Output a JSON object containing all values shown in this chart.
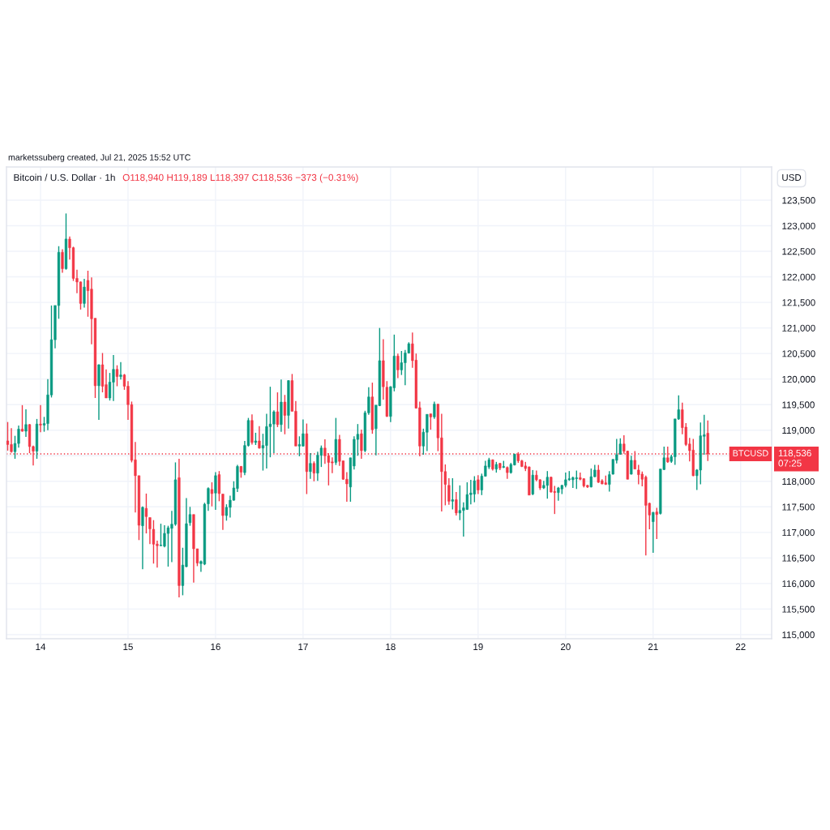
{
  "chart_data": {
    "type": "candlestick",
    "title": "Bitcoin / U.S. Dollar · 1h",
    "subtitle": "O118,940 H119,189 L118,397 C118,536 −373 (−0.31%)",
    "ylabel": "USD",
    "annotations": [
      "marketssuberg created, Jul 21, 2025 15:52 UTC",
      "118,536",
      "07:25"
    ],
    "x": [
      "2025-07-13T15:00",
      "2025-07-13T16:00",
      "2025-07-13T17:00",
      "2025-07-13T18:00",
      "2025-07-13T19:00",
      "2025-07-13T20:00",
      "2025-07-13T21:00",
      "2025-07-13T22:00",
      "2025-07-13T23:00",
      "2025-07-14T00:00",
      "2025-07-14T01:00",
      "2025-07-14T02:00",
      "2025-07-14T03:00",
      "2025-07-14T04:00",
      "2025-07-14T05:00",
      "2025-07-14T06:00",
      "2025-07-14T07:00",
      "2025-07-14T08:00",
      "2025-07-14T09:00",
      "2025-07-14T10:00",
      "2025-07-14T11:00",
      "2025-07-14T12:00",
      "2025-07-14T13:00",
      "2025-07-14T14:00",
      "2025-07-14T15:00",
      "2025-07-14T16:00",
      "2025-07-14T17:00",
      "2025-07-14T18:00",
      "2025-07-14T19:00",
      "2025-07-14T20:00",
      "2025-07-14T21:00",
      "2025-07-14T22:00",
      "2025-07-14T23:00",
      "2025-07-15T00:00",
      "2025-07-15T01:00",
      "2025-07-15T02:00",
      "2025-07-15T03:00",
      "2025-07-15T04:00",
      "2025-07-15T05:00",
      "2025-07-15T06:00",
      "2025-07-15T07:00",
      "2025-07-15T08:00",
      "2025-07-15T09:00",
      "2025-07-15T10:00",
      "2025-07-15T11:00",
      "2025-07-15T12:00",
      "2025-07-15T13:00",
      "2025-07-15T14:00",
      "2025-07-15T15:00",
      "2025-07-15T16:00",
      "2025-07-15T17:00",
      "2025-07-15T18:00",
      "2025-07-15T19:00",
      "2025-07-15T20:00",
      "2025-07-15T21:00",
      "2025-07-15T22:00",
      "2025-07-15T23:00",
      "2025-07-16T00:00",
      "2025-07-16T01:00",
      "2025-07-16T02:00",
      "2025-07-16T03:00",
      "2025-07-16T04:00",
      "2025-07-16T05:00",
      "2025-07-16T06:00",
      "2025-07-16T07:00",
      "2025-07-16T08:00",
      "2025-07-16T09:00",
      "2025-07-16T10:00",
      "2025-07-16T11:00",
      "2025-07-16T12:00",
      "2025-07-16T13:00",
      "2025-07-16T14:00",
      "2025-07-16T15:00",
      "2025-07-16T16:00",
      "2025-07-16T17:00",
      "2025-07-16T18:00",
      "2025-07-16T19:00",
      "2025-07-16T20:00",
      "2025-07-16T21:00",
      "2025-07-16T22:00",
      "2025-07-16T23:00",
      "2025-07-17T00:00",
      "2025-07-17T01:00",
      "2025-07-17T02:00",
      "2025-07-17T03:00",
      "2025-07-17T04:00",
      "2025-07-17T05:00",
      "2025-07-17T06:00",
      "2025-07-17T07:00",
      "2025-07-17T08:00",
      "2025-07-17T09:00",
      "2025-07-17T10:00",
      "2025-07-17T11:00",
      "2025-07-17T12:00",
      "2025-07-17T13:00",
      "2025-07-17T14:00",
      "2025-07-17T15:00",
      "2025-07-17T16:00",
      "2025-07-17T17:00",
      "2025-07-17T18:00",
      "2025-07-17T19:00",
      "2025-07-17T20:00",
      "2025-07-17T21:00",
      "2025-07-17T22:00",
      "2025-07-17T23:00",
      "2025-07-18T00:00",
      "2025-07-18T01:00",
      "2025-07-18T02:00",
      "2025-07-18T03:00",
      "2025-07-18T04:00",
      "2025-07-18T05:00",
      "2025-07-18T06:00",
      "2025-07-18T07:00",
      "2025-07-18T08:00",
      "2025-07-18T09:00",
      "2025-07-18T10:00",
      "2025-07-18T11:00",
      "2025-07-18T12:00",
      "2025-07-18T13:00",
      "2025-07-18T14:00",
      "2025-07-18T15:00",
      "2025-07-18T16:00",
      "2025-07-18T17:00",
      "2025-07-18T18:00",
      "2025-07-18T19:00",
      "2025-07-18T20:00",
      "2025-07-18T21:00",
      "2025-07-18T22:00",
      "2025-07-18T23:00",
      "2025-07-19T00:00",
      "2025-07-19T01:00",
      "2025-07-19T02:00",
      "2025-07-19T03:00",
      "2025-07-19T04:00",
      "2025-07-19T05:00",
      "2025-07-19T06:00",
      "2025-07-19T07:00",
      "2025-07-19T08:00",
      "2025-07-19T09:00",
      "2025-07-19T10:00",
      "2025-07-19T11:00",
      "2025-07-19T12:00",
      "2025-07-19T13:00",
      "2025-07-19T14:00",
      "2025-07-19T15:00",
      "2025-07-19T16:00",
      "2025-07-19T17:00",
      "2025-07-19T18:00",
      "2025-07-19T19:00",
      "2025-07-19T20:00",
      "2025-07-19T21:00",
      "2025-07-19T22:00",
      "2025-07-19T23:00",
      "2025-07-20T00:00",
      "2025-07-20T01:00",
      "2025-07-20T02:00",
      "2025-07-20T03:00",
      "2025-07-20T04:00",
      "2025-07-20T05:00",
      "2025-07-20T06:00",
      "2025-07-20T07:00",
      "2025-07-20T08:00",
      "2025-07-20T09:00",
      "2025-07-20T10:00",
      "2025-07-20T11:00",
      "2025-07-20T12:00",
      "2025-07-20T13:00",
      "2025-07-20T14:00",
      "2025-07-20T15:00",
      "2025-07-20T16:00",
      "2025-07-20T17:00",
      "2025-07-20T18:00",
      "2025-07-20T19:00",
      "2025-07-20T20:00",
      "2025-07-20T21:00",
      "2025-07-20T22:00",
      "2025-07-20T23:00",
      "2025-07-21T00:00",
      "2025-07-21T01:00",
      "2025-07-21T02:00",
      "2025-07-21T03:00",
      "2025-07-21T04:00",
      "2025-07-21T05:00",
      "2025-07-21T06:00",
      "2025-07-21T07:00",
      "2025-07-21T08:00",
      "2025-07-21T09:00",
      "2025-07-21T10:00",
      "2025-07-21T11:00",
      "2025-07-21T12:00",
      "2025-07-21T13:00",
      "2025-07-21T14:00",
      "2025-07-21T15:00"
    ],
    "ohlc": [
      [
        118790,
        119160,
        118600,
        118720
      ],
      [
        118720,
        119040,
        118560,
        118580
      ],
      [
        118580,
        118890,
        118440,
        118740
      ],
      [
        118740,
        119090,
        118660,
        119020
      ],
      [
        119020,
        119490,
        118970,
        118980
      ],
      [
        118980,
        119410,
        118870,
        119110
      ],
      [
        119110,
        119120,
        118550,
        118680
      ],
      [
        118680,
        118700,
        118310,
        118590
      ],
      [
        118590,
        119220,
        118440,
        119120
      ],
      [
        119120,
        119490,
        118960,
        119100
      ],
      [
        119100,
        119260,
        118970,
        119130
      ],
      [
        119130,
        120000,
        119000,
        119690
      ],
      [
        119690,
        121440,
        119640,
        120770
      ],
      [
        120770,
        121440,
        120600,
        121440
      ],
      [
        121440,
        122600,
        121180,
        122480
      ],
      [
        122480,
        122540,
        122080,
        122160
      ],
      [
        122160,
        123240,
        122140,
        122740
      ],
      [
        122740,
        122790,
        122340,
        122570
      ],
      [
        122570,
        122590,
        121920,
        121970
      ],
      [
        121970,
        122140,
        121680,
        121900
      ],
      [
        121900,
        121910,
        121360,
        121480
      ],
      [
        121480,
        121960,
        121400,
        121800
      ],
      [
        121930,
        122120,
        121220,
        121730
      ],
      [
        121760,
        121990,
        120680,
        121180
      ],
      [
        121190,
        121190,
        119630,
        119870
      ],
      [
        119870,
        120290,
        119200,
        120280
      ],
      [
        120280,
        120510,
        119740,
        119860
      ],
      [
        119890,
        120190,
        119630,
        119630
      ],
      [
        119630,
        120120,
        119580,
        119940
      ],
      [
        119940,
        120470,
        119570,
        120190
      ],
      [
        120190,
        120270,
        119860,
        120050
      ],
      [
        120050,
        120330,
        119990,
        120080
      ],
      [
        120080,
        120100,
        119790,
        119860
      ],
      [
        119860,
        119960,
        119200,
        119500
      ],
      [
        119500,
        119560,
        118370,
        118410
      ],
      [
        118420,
        118770,
        117390,
        118110
      ],
      [
        118110,
        118110,
        116850,
        117140
      ],
      [
        117130,
        117510,
        116280,
        117490
      ],
      [
        117470,
        117760,
        116980,
        117310
      ],
      [
        117290,
        117290,
        116770,
        117070
      ],
      [
        117060,
        117240,
        116390,
        116770
      ],
      [
        116770,
        116840,
        116310,
        116740
      ],
      [
        116740,
        117170,
        116730,
        116750
      ],
      [
        116730,
        117140,
        116710,
        116980
      ],
      [
        116980,
        117130,
        116330,
        117090
      ],
      [
        117080,
        117420,
        116420,
        117160
      ],
      [
        117160,
        118370,
        117130,
        118030
      ],
      [
        118070,
        118440,
        115730,
        115960
      ],
      [
        115960,
        116700,
        115770,
        116360
      ],
      [
        116330,
        117670,
        116320,
        117170
      ],
      [
        117190,
        117500,
        117130,
        117350
      ],
      [
        117350,
        117350,
        116020,
        116680
      ],
      [
        116680,
        116680,
        116340,
        116400
      ],
      [
        116390,
        116450,
        116230,
        116430
      ],
      [
        116380,
        117580,
        116360,
        117550
      ],
      [
        117560,
        117880,
        117420,
        117860
      ],
      [
        117840,
        117980,
        117510,
        117760
      ],
      [
        117770,
        118180,
        117440,
        118110
      ],
      [
        118130,
        118200,
        117610,
        117760
      ],
      [
        117750,
        117750,
        117050,
        117330
      ],
      [
        117330,
        117550,
        117230,
        117490
      ],
      [
        117490,
        117720,
        117290,
        117630
      ],
      [
        117630,
        118000,
        117620,
        117870
      ],
      [
        117860,
        118320,
        117790,
        118290
      ],
      [
        118290,
        118300,
        118070,
        118180
      ],
      [
        118170,
        118790,
        118120,
        118700
      ],
      [
        118700,
        119240,
        118680,
        119190
      ],
      [
        119190,
        119310,
        118720,
        118760
      ],
      [
        118760,
        118950,
        118710,
        118790
      ],
      [
        118790,
        119080,
        118640,
        118650
      ],
      [
        118650,
        118930,
        118210,
        118700
      ],
      [
        118700,
        119320,
        118250,
        119070
      ],
      [
        119070,
        119850,
        118470,
        119120
      ],
      [
        119120,
        119390,
        118550,
        119360
      ],
      [
        119360,
        119740,
        119060,
        119110
      ],
      [
        119110,
        119990,
        118970,
        119550
      ],
      [
        119550,
        119690,
        118920,
        119290
      ],
      [
        119290,
        119980,
        119030,
        119970
      ],
      [
        119970,
        120100,
        119370,
        119370
      ],
      [
        119370,
        119570,
        118690,
        118690
      ],
      [
        118690,
        118880,
        118490,
        118720
      ],
      [
        118690,
        119210,
        118680,
        118930
      ],
      [
        118930,
        119130,
        117750,
        118190
      ],
      [
        118190,
        118550,
        118050,
        118350
      ],
      [
        118350,
        118390,
        118000,
        118160
      ],
      [
        118160,
        118580,
        118010,
        118510
      ],
      [
        118510,
        118700,
        118280,
        118650
      ],
      [
        118650,
        118820,
        118340,
        118500
      ],
      [
        118500,
        118550,
        117920,
        118370
      ],
      [
        118380,
        118470,
        118160,
        118360
      ],
      [
        118370,
        119240,
        118320,
        118820
      ],
      [
        118820,
        118910,
        118300,
        118390
      ],
      [
        118400,
        118400,
        118030,
        118040
      ],
      [
        118040,
        118180,
        117600,
        117950
      ],
      [
        117890,
        118460,
        117600,
        118460
      ],
      [
        118300,
        118880,
        118230,
        118820
      ],
      [
        118820,
        119120,
        118500,
        118920
      ],
      [
        118930,
        119010,
        118440,
        118600
      ],
      [
        118600,
        119380,
        118570,
        119340
      ],
      [
        119340,
        119840,
        119300,
        119650
      ],
      [
        119650,
        119930,
        118930,
        119010
      ],
      [
        119030,
        119490,
        118510,
        119490
      ],
      [
        119480,
        121000,
        119470,
        120360
      ],
      [
        120360,
        120780,
        119600,
        119850
      ],
      [
        119840,
        119960,
        119260,
        119270
      ],
      [
        119270,
        119860,
        119160,
        119850
      ],
      [
        119830,
        120870,
        119760,
        120450
      ],
      [
        120450,
        120500,
        120020,
        120180
      ],
      [
        120180,
        120550,
        120080,
        120320
      ],
      [
        120320,
        120570,
        119880,
        120510
      ],
      [
        120510,
        120720,
        120500,
        120690
      ],
      [
        120690,
        120910,
        120220,
        120360
      ],
      [
        120370,
        120500,
        119430,
        119430
      ],
      [
        119440,
        119560,
        118490,
        118690
      ],
      [
        118690,
        119030,
        118520,
        118960
      ],
      [
        118960,
        119310,
        118590,
        119310
      ],
      [
        119320,
        119320,
        119010,
        119260
      ],
      [
        119260,
        119560,
        119220,
        119510
      ],
      [
        119510,
        119510,
        118590,
        118850
      ],
      [
        118850,
        119320,
        117410,
        118190
      ],
      [
        118190,
        118330,
        117530,
        117940
      ],
      [
        117920,
        118060,
        117540,
        117610
      ],
      [
        117610,
        118060,
        117450,
        117640
      ],
      [
        117640,
        117790,
        117330,
        117380
      ],
      [
        117380,
        117920,
        117240,
        117430
      ],
      [
        117430,
        117590,
        116920,
        117480
      ],
      [
        117450,
        117980,
        117440,
        117740
      ],
      [
        117740,
        118030,
        117550,
        117770
      ],
      [
        117750,
        118100,
        117590,
        118010
      ],
      [
        118030,
        118120,
        117750,
        117830
      ],
      [
        117830,
        118150,
        117730,
        118100
      ],
      [
        118100,
        118400,
        118090,
        118300
      ],
      [
        118280,
        118460,
        118240,
        118420
      ],
      [
        118420,
        118430,
        118210,
        118240
      ],
      [
        118240,
        118380,
        118170,
        118330
      ],
      [
        118350,
        118360,
        118220,
        118260
      ],
      [
        118270,
        118400,
        118260,
        118290
      ],
      [
        118270,
        118290,
        118050,
        118170
      ],
      [
        118170,
        118360,
        118150,
        118330
      ],
      [
        118320,
        118540,
        118310,
        118530
      ],
      [
        118530,
        118570,
        118360,
        118400
      ],
      [
        118400,
        118420,
        118280,
        118290
      ],
      [
        118300,
        118380,
        118200,
        118250
      ],
      [
        118280,
        118290,
        117730,
        117730
      ],
      [
        117750,
        118220,
        117730,
        118120
      ],
      [
        118120,
        118210,
        118000,
        118030
      ],
      [
        118030,
        118040,
        117830,
        117870
      ],
      [
        117870,
        118010,
        117850,
        117920
      ],
      [
        117920,
        118200,
        117660,
        118080
      ],
      [
        118080,
        118090,
        117780,
        117790
      ],
      [
        117800,
        117910,
        117360,
        117780
      ],
      [
        117780,
        117890,
        117620,
        117870
      ],
      [
        117850,
        117930,
        117750,
        117920
      ],
      [
        117920,
        118170,
        117880,
        118030
      ],
      [
        118030,
        118200,
        118010,
        118050
      ],
      [
        118030,
        118090,
        117870,
        118070
      ],
      [
        118050,
        118210,
        117850,
        118070
      ],
      [
        118070,
        118170,
        118020,
        118040
      ],
      [
        118050,
        118060,
        117880,
        117910
      ],
      [
        117920,
        117930,
        117870,
        117890
      ],
      [
        117890,
        118250,
        117880,
        118090
      ],
      [
        118090,
        118320,
        118080,
        118220
      ],
      [
        118220,
        118320,
        117970,
        117980
      ],
      [
        118010,
        118040,
        117940,
        117950
      ],
      [
        117970,
        118110,
        117930,
        117940
      ],
      [
        117940,
        118200,
        117800,
        118130
      ],
      [
        118140,
        118430,
        118130,
        118430
      ],
      [
        118410,
        118830,
        118350,
        118520
      ],
      [
        118530,
        118840,
        118520,
        118730
      ],
      [
        118730,
        118900,
        118540,
        118590
      ],
      [
        118590,
        118600,
        118040,
        118040
      ],
      [
        118140,
        118500,
        118130,
        118410
      ],
      [
        118410,
        118590,
        118240,
        118240
      ],
      [
        118220,
        118320,
        117940,
        118130
      ],
      [
        118140,
        118190,
        117900,
        118040
      ],
      [
        118080,
        118110,
        116550,
        117530
      ],
      [
        117570,
        117580,
        117060,
        117340
      ],
      [
        117210,
        117400,
        116600,
        117390
      ],
      [
        117400,
        117480,
        116870,
        117350
      ],
      [
        117370,
        118240,
        117350,
        118240
      ],
      [
        118230,
        118680,
        118220,
        118460
      ],
      [
        118460,
        118680,
        118360,
        118380
      ],
      [
        118390,
        118520,
        118360,
        118480
      ],
      [
        118480,
        119220,
        118320,
        119220
      ],
      [
        119220,
        119680,
        119200,
        119400
      ],
      [
        119400,
        119540,
        118920,
        119050
      ],
      [
        119060,
        119140,
        118690,
        118720
      ],
      [
        118730,
        118850,
        118390,
        118600
      ],
      [
        118610,
        118830,
        118100,
        118110
      ],
      [
        118110,
        118240,
        117830,
        118220
      ],
      [
        118220,
        119150,
        117940,
        118890
      ],
      [
        118880,
        119300,
        118520,
        118910
      ],
      [
        118940,
        119189,
        118397,
        118536
      ]
    ],
    "colors": [
      "#f23645",
      "#f23645",
      "#089981",
      "#089981",
      "#f23645",
      "#089981",
      "#f23645",
      "#f23645",
      "#089981",
      "#f23645",
      "#089981",
      "#089981",
      "#089981",
      "#089981",
      "#089981",
      "#f23645",
      "#089981",
      "#f23645",
      "#f23645",
      "#f23645",
      "#f23645",
      "#089981",
      "#f23645",
      "#f23645",
      "#f23645",
      "#089981",
      "#f23645",
      "#f23645",
      "#089981",
      "#089981",
      "#f23645",
      "#089981",
      "#f23645",
      "#f23645",
      "#f23645",
      "#f23645",
      "#f23645",
      "#089981",
      "#f23645",
      "#f23645",
      "#f23645",
      "#f23645",
      "#089981",
      "#089981",
      "#089981",
      "#089981",
      "#089981",
      "#f23645",
      "#089981",
      "#089981",
      "#089981",
      "#f23645",
      "#f23645",
      "#089981",
      "#089981",
      "#089981",
      "#f23645",
      "#089981",
      "#f23645",
      "#f23645",
      "#089981",
      "#089981",
      "#089981",
      "#089981",
      "#f23645",
      "#089981",
      "#089981",
      "#f23645",
      "#089981",
      "#f23645",
      "#089981",
      "#089981",
      "#089981",
      "#089981",
      "#f23645",
      "#089981",
      "#f23645",
      "#089981",
      "#f23645",
      "#f23645",
      "#089981",
      "#089981",
      "#f23645",
      "#089981",
      "#f23645",
      "#089981",
      "#089981",
      "#f23645",
      "#f23645",
      "#f23645",
      "#089981",
      "#f23645",
      "#f23645",
      "#f23645",
      "#089981",
      "#089981",
      "#089981",
      "#f23645",
      "#089981",
      "#089981",
      "#f23645",
      "#089981",
      "#089981",
      "#f23645",
      "#f23645",
      "#089981",
      "#089981",
      "#f23645",
      "#089981",
      "#089981",
      "#089981",
      "#f23645",
      "#f23645",
      "#f23645",
      "#089981",
      "#089981",
      "#f23645",
      "#089981",
      "#f23645",
      "#f23645",
      "#f23645",
      "#f23645",
      "#089981",
      "#f23645",
      "#089981",
      "#089981",
      "#089981",
      "#089981",
      "#089981",
      "#f23645",
      "#089981",
      "#089981",
      "#089981",
      "#f23645",
      "#089981",
      "#f23645",
      "#089981",
      "#f23645",
      "#089981",
      "#089981",
      "#f23645",
      "#f23645",
      "#f23645",
      "#f23645",
      "#089981",
      "#f23645",
      "#f23645",
      "#089981",
      "#089981",
      "#f23645",
      "#f23645",
      "#089981",
      "#089981",
      "#089981",
      "#089981",
      "#089981",
      "#089981",
      "#f23645",
      "#f23645",
      "#f23645",
      "#089981",
      "#089981",
      "#f23645",
      "#f23645",
      "#f23645",
      "#089981",
      "#089981",
      "#089981",
      "#089981",
      "#f23645",
      "#f23645",
      "#089981",
      "#f23645",
      "#f23645",
      "#f23645",
      "#f23645",
      "#f23645",
      "#089981",
      "#f23645",
      "#089981",
      "#089981",
      "#f23645",
      "#089981",
      "#089981",
      "#089981",
      "#f23645",
      "#f23645",
      "#f23645",
      "#f23645",
      "#089981",
      "#089981",
      "#089981",
      "#f23645"
    ],
    "xlim": [
      "2025-07-13T14:40",
      "2025-07-22T08:30"
    ],
    "xticks": [
      {
        "value": "2025-07-14",
        "label": "14"
      },
      {
        "value": "2025-07-15",
        "label": "15"
      },
      {
        "value": "2025-07-16",
        "label": "16"
      },
      {
        "value": "2025-07-17",
        "label": "17"
      },
      {
        "value": "2025-07-18",
        "label": "18"
      },
      {
        "value": "2025-07-19",
        "label": "19"
      },
      {
        "value": "2025-07-20",
        "label": "20"
      },
      {
        "value": "2025-07-21",
        "label": "21"
      },
      {
        "value": "2025-07-22",
        "label": "22"
      }
    ],
    "ylim": [
      114920,
      124150
    ],
    "yticks": [
      {
        "value": 115000,
        "label": "115,000"
      },
      {
        "value": 115500,
        "label": "115,500"
      },
      {
        "value": 116000,
        "label": "116,000"
      },
      {
        "value": 116500,
        "label": "116,500"
      },
      {
        "value": 117000,
        "label": "117,000"
      },
      {
        "value": 117500,
        "label": "117,500"
      },
      {
        "value": 118000,
        "label": "118,000"
      },
      {
        "value": 118500,
        "label": null
      },
      {
        "value": 119000,
        "label": "119,000"
      },
      {
        "value": 119500,
        "label": "119,500"
      },
      {
        "value": 120000,
        "label": "120,000"
      },
      {
        "value": 120500,
        "label": "120,500"
      },
      {
        "value": 121000,
        "label": "121,000"
      },
      {
        "value": 121500,
        "label": "121,500"
      },
      {
        "value": 122000,
        "label": "122,000"
      },
      {
        "value": 122500,
        "label": "122,500"
      },
      {
        "value": 123000,
        "label": "123,000"
      },
      {
        "value": 123500,
        "label": "123,500"
      }
    ],
    "ref_lines": [
      {
        "axis": "y",
        "value": 118536,
        "label": "BTCUSD",
        "color": "#f23645",
        "line_style": "dotted"
      }
    ],
    "grid": true
  }
}
